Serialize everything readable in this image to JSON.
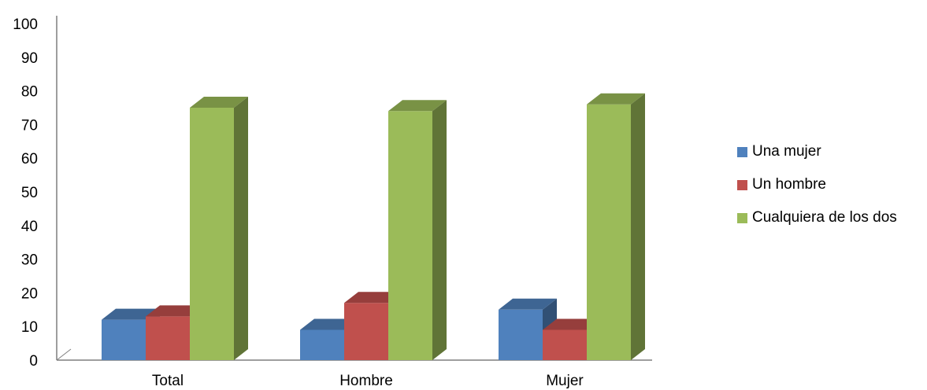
{
  "chart_data": {
    "type": "bar",
    "style": "3d-clustered-column",
    "categories": [
      "Total",
      "Hombre",
      "Mujer"
    ],
    "series": [
      {
        "name": "Una mujer",
        "color": "#4f81bd",
        "values": [
          12,
          9,
          15
        ]
      },
      {
        "name": "Un hombre",
        "color": "#c0504d",
        "values": [
          13,
          17,
          9
        ]
      },
      {
        "name": "Cualquiera de los dos",
        "color": "#9bbb59",
        "values": [
          75,
          74,
          76
        ]
      }
    ],
    "yticks": [
      "0",
      "10",
      "20",
      "30",
      "40",
      "50",
      "60",
      "70",
      "80",
      "90",
      "100"
    ],
    "ylim": [
      0,
      100
    ],
    "grid": false,
    "legend_position": "right"
  },
  "legend": {
    "items": [
      "Una mujer",
      "Un hombre",
      "Cualquiera de los dos"
    ],
    "colors": [
      "#4f81bd",
      "#c0504d",
      "#9bbb59"
    ]
  }
}
